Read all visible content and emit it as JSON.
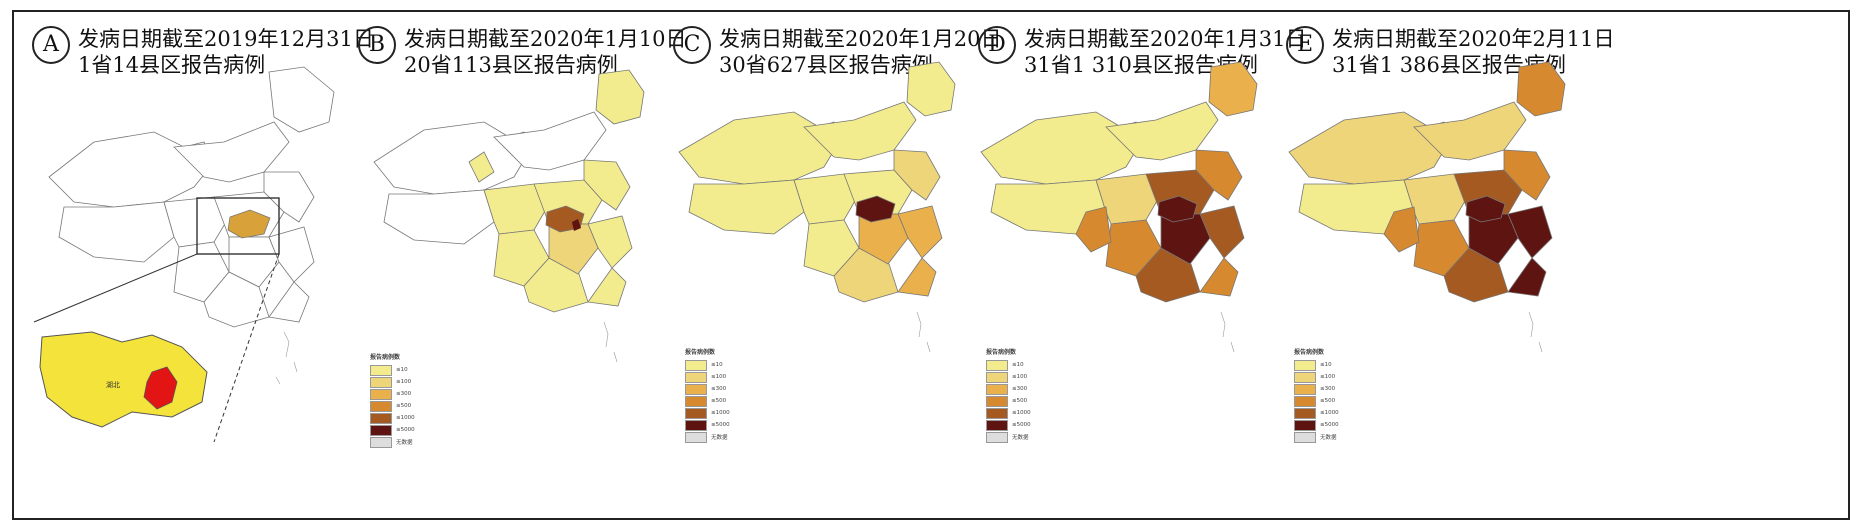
{
  "panels": [
    {
      "letter": "A",
      "line1": "发病日期截至2019年12月31日",
      "line2": "1省14县区报告病例"
    },
    {
      "letter": "B",
      "line1": "发病日期截至2020年1月10日",
      "line2": "20省113县区报告病例"
    },
    {
      "letter": "C",
      "line1": "发病日期截至2020年1月20日",
      "line2": "30省627县区报告病例"
    },
    {
      "letter": "D",
      "line1": "发病日期截至2020年1月31日",
      "line2": "31省1 310县区报告病例"
    },
    {
      "letter": "E",
      "line1": "发病日期截至2020年2月11日",
      "line2": "31省1 386县区报告病例"
    }
  ],
  "inset": {
    "label": "湖北"
  },
  "legend": {
    "title": "报告病例数",
    "items": [
      "≤10",
      "≤100",
      "≤300",
      "≤500",
      "≤1000",
      "≤5000",
      "无数据"
    ],
    "colors": [
      "#f3ec8e",
      "#eed57a",
      "#e9b04c",
      "#d6892e",
      "#a45a21",
      "#5e1411",
      "#dddddd"
    ]
  },
  "colors": {
    "empty": "#ffffff",
    "light": "#f3ec8e",
    "pale_orange": "#eed57a",
    "orange": "#e9b04c",
    "dark_orange": "#d6892e",
    "brown": "#a45a21",
    "dark_red": "#5e1411",
    "hubei_inset": "#f4e33a",
    "wuhan": "#e31414",
    "hubei_a": "#d9a13a"
  }
}
